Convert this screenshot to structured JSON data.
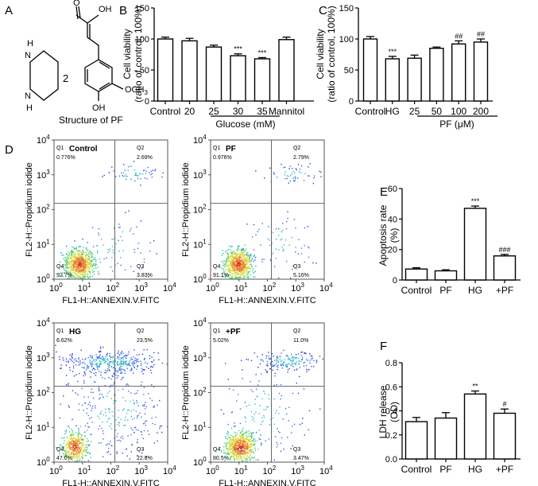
{
  "panel_letters": {
    "A": "A",
    "B": "B",
    "C": "C",
    "D": "D",
    "E": "E",
    "F": "F"
  },
  "structure": {
    "caption": "Structure of PF",
    "multiplier": "2",
    "atoms": {
      "OH_top": "OH",
      "O_top": "O",
      "N1": "N",
      "H1": "H",
      "N2": "N",
      "H2": "H",
      "OCH3": "OCH",
      "OCH3_sub": "3",
      "OH_bottom": "OH"
    }
  },
  "flow": {
    "xlabel": "FL1-H::ANNEXIN.V.FITC",
    "ylabel": "FL2-H::Propidium iodide",
    "ticks": [
      "10",
      "0",
      "1",
      "2",
      "3",
      "4"
    ],
    "quad_labels": {
      "q1": "Q1",
      "q2": "Q2",
      "q3": "Q3",
      "q4": "Q4"
    },
    "plots": [
      {
        "title": "Control",
        "q1": "0.776%",
        "q2": "2.69%",
        "q3": "3.83%",
        "q4": "92.7%"
      },
      {
        "title": "PF",
        "q1": "0.976%",
        "q2": "2.79%",
        "q3": "5.16%",
        "q4": "91.1%"
      },
      {
        "title": "HG",
        "q1": "6.62%",
        "q2": "23.5%",
        "q3": "22.8%",
        "q4": "47.0%"
      },
      {
        "title": "+PF",
        "q1": "5.02%",
        "q2": "11.0%",
        "q3": "3.47%",
        "q4": "80.5%"
      }
    ]
  },
  "chart_data": [
    {
      "panel": "B",
      "type": "bar",
      "categories": [
        "Control",
        "20",
        "25",
        "30",
        "35",
        "Mannitol"
      ],
      "values": [
        100,
        97,
        87,
        73,
        68,
        99
      ],
      "errors": [
        3,
        4,
        3,
        3,
        2,
        4
      ],
      "sig": [
        "",
        "",
        "",
        "***",
        "***",
        ""
      ],
      "ylabel": "Cell viability (ratio of control, 100%)",
      "yticks": [
        "0",
        "50",
        "100",
        "150"
      ],
      "ylim": [
        0,
        150
      ],
      "group_label": "Glucose (mM)"
    },
    {
      "panel": "C",
      "type": "bar",
      "categories": [
        "Control",
        "HG",
        "25",
        "50",
        "100",
        "200"
      ],
      "values": [
        100,
        68,
        69,
        85,
        92,
        95
      ],
      "errors": [
        4,
        4,
        5,
        2,
        5,
        5
      ],
      "sig": [
        "",
        "***",
        "",
        "",
        "##",
        "##"
      ],
      "ylabel": "Cell viability (ratio of control, 100%)",
      "yticks": [
        "0",
        "50",
        "100",
        "150"
      ],
      "ylim": [
        0,
        150
      ],
      "group_label": "PF (μM)"
    },
    {
      "panel": "E",
      "type": "bar",
      "categories": [
        "Control",
        "PF",
        "HG",
        "+PF"
      ],
      "values": [
        7.2,
        6.0,
        47.0,
        15.8
      ],
      "errors": [
        0.8,
        0.7,
        1.5,
        1.0
      ],
      "sig": [
        "",
        "",
        "***",
        "###"
      ],
      "ylabel": "Apoptosis rate (%)",
      "yticks": [
        "0",
        "20",
        "40",
        "60"
      ],
      "ylim": [
        0,
        60
      ]
    },
    {
      "panel": "F",
      "type": "bar",
      "categories": [
        "Control",
        "PF",
        "HG",
        "+PF"
      ],
      "values": [
        0.31,
        0.34,
        0.54,
        0.38
      ],
      "errors": [
        0.035,
        0.045,
        0.025,
        0.035
      ],
      "sig": [
        "",
        "",
        "**",
        "#"
      ],
      "ylabel": "LDH release (OD)",
      "yticks": [
        "0.0",
        "0.2",
        "0.4",
        "0.6",
        "0.8"
      ],
      "ylim": [
        0,
        0.8
      ]
    }
  ]
}
